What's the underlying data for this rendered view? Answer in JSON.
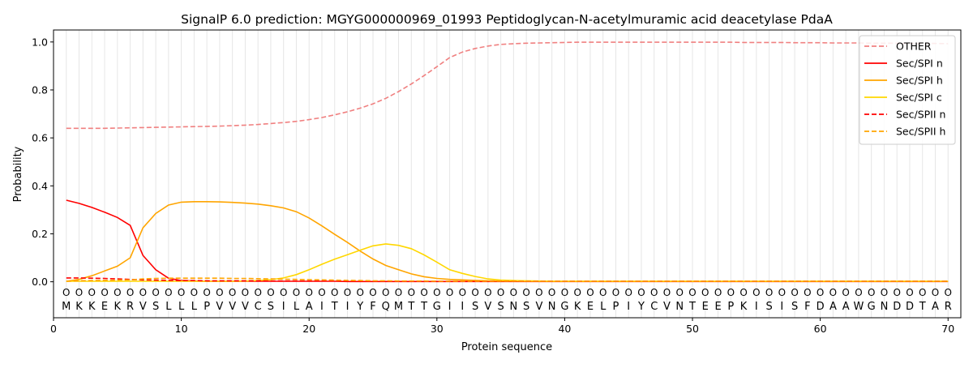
{
  "chart_data": {
    "type": "line",
    "title": "SignalP 6.0 prediction: MGYG000000969_01993 Peptidoglycan-N-acetylmuramic acid deacetylase PdaA",
    "xlabel": "Protein sequence",
    "ylabel": "Probability",
    "xlim": [
      0,
      71
    ],
    "ylim": [
      -0.15,
      1.05
    ],
    "grid": "vertical",
    "legend_position": "top-right",
    "x_ticks": [
      0,
      10,
      20,
      30,
      40,
      50,
      60,
      70
    ],
    "y_ticks": [
      "0.0",
      "0.2",
      "0.4",
      "0.6",
      "0.8",
      "1.0"
    ],
    "sequence": [
      "M",
      "K",
      "K",
      "E",
      "K",
      "R",
      "V",
      "S",
      "L",
      "L",
      "L",
      "P",
      "V",
      "V",
      "V",
      "C",
      "S",
      "I",
      "L",
      "A",
      "I",
      "T",
      "I",
      "Y",
      "F",
      "Q",
      "M",
      "T",
      "T",
      "G",
      "I",
      "I",
      "S",
      "V",
      "S",
      "N",
      "S",
      "V",
      "N",
      "G",
      "K",
      "E",
      "L",
      "P",
      "I",
      "Y",
      "C",
      "V",
      "N",
      "T",
      "E",
      "E",
      "P",
      "K",
      "I",
      "S",
      "I",
      "S",
      "F",
      "D",
      "A",
      "A",
      "W",
      "G",
      "N",
      "D",
      "D",
      "T",
      "A",
      "R"
    ],
    "position_marker": "O",
    "x": [
      1,
      2,
      3,
      4,
      5,
      6,
      7,
      8,
      9,
      10,
      11,
      12,
      13,
      14,
      15,
      16,
      17,
      18,
      19,
      20,
      21,
      22,
      23,
      24,
      25,
      26,
      27,
      28,
      29,
      30,
      31,
      32,
      33,
      34,
      35,
      36,
      37,
      38,
      39,
      40,
      41,
      42,
      43,
      44,
      45,
      46,
      47,
      48,
      49,
      50,
      51,
      52,
      53,
      54,
      55,
      56,
      57,
      58,
      59,
      60,
      61,
      62,
      63,
      64,
      65,
      66,
      67,
      68,
      69,
      70
    ],
    "series": [
      {
        "name": "OTHER",
        "color": "#f08080",
        "dash": true,
        "values": [
          0.64,
          0.64,
          0.64,
          0.64,
          0.641,
          0.642,
          0.643,
          0.644,
          0.645,
          0.646,
          0.647,
          0.648,
          0.649,
          0.651,
          0.653,
          0.656,
          0.66,
          0.664,
          0.669,
          0.676,
          0.685,
          0.696,
          0.709,
          0.724,
          0.742,
          0.765,
          0.793,
          0.825,
          0.86,
          0.897,
          0.935,
          0.958,
          0.973,
          0.983,
          0.99,
          0.993,
          0.995,
          0.996,
          0.997,
          0.998,
          0.999,
          0.999,
          0.999,
          0.999,
          0.999,
          0.999,
          0.999,
          0.999,
          0.999,
          0.999,
          0.999,
          0.999,
          0.999,
          0.998,
          0.998,
          0.998,
          0.998,
          0.997,
          0.997,
          0.997,
          0.996,
          0.996,
          0.996,
          0.995,
          0.995,
          0.995,
          0.994,
          0.994,
          0.994,
          0.993
        ]
      },
      {
        "name": "Sec/SPI n",
        "color": "#ff0000",
        "dash": false,
        "values": [
          0.34,
          0.327,
          0.31,
          0.29,
          0.268,
          0.235,
          0.11,
          0.05,
          0.015,
          0.005,
          0.003,
          0.002,
          0.002,
          0.002,
          0.002,
          0.002,
          0.002,
          0.002,
          0.002,
          0.002,
          0.002,
          0.002,
          0.001,
          0.001,
          0.001,
          0.001,
          0.001,
          0.001,
          0.001,
          0.001,
          0.001,
          0.001,
          0.001,
          0.001,
          0.001,
          0.001,
          0.001,
          0.001,
          0.001,
          0.001,
          0.001,
          0.001,
          0.001,
          0.001,
          0.001,
          0.001,
          0.001,
          0.001,
          0.001,
          0.001,
          0.001,
          0.001,
          0.001,
          0.001,
          0.001,
          0.001,
          0.001,
          0.001,
          0.001,
          0.001,
          0.001,
          0.001,
          0.001,
          0.001,
          0.001,
          0.001,
          0.001,
          0.001,
          0.001,
          0.001
        ]
      },
      {
        "name": "Sec/SPI h",
        "color": "#ffa500",
        "dash": false,
        "values": [
          0.002,
          0.01,
          0.025,
          0.045,
          0.065,
          0.1,
          0.225,
          0.285,
          0.32,
          0.332,
          0.334,
          0.334,
          0.333,
          0.331,
          0.328,
          0.324,
          0.317,
          0.308,
          0.292,
          0.266,
          0.233,
          0.198,
          0.164,
          0.128,
          0.095,
          0.068,
          0.05,
          0.033,
          0.021,
          0.014,
          0.01,
          0.008,
          0.006,
          0.004,
          0.003,
          0.003,
          0.002,
          0.002,
          0.002,
          0.002,
          0.002,
          0.002,
          0.002,
          0.002,
          0.002,
          0.002,
          0.002,
          0.002,
          0.002,
          0.002,
          0.002,
          0.002,
          0.002,
          0.002,
          0.002,
          0.002,
          0.002,
          0.002,
          0.002,
          0.002,
          0.002,
          0.002,
          0.002,
          0.002,
          0.002,
          0.002,
          0.002,
          0.002,
          0.002,
          0.002
        ]
      },
      {
        "name": "Sec/SPI c",
        "color": "#ffd700",
        "dash": false,
        "values": [
          0.002,
          0.002,
          0.002,
          0.002,
          0.002,
          0.002,
          0.002,
          0.002,
          0.002,
          0.002,
          0.002,
          0.002,
          0.002,
          0.002,
          0.003,
          0.005,
          0.009,
          0.016,
          0.03,
          0.05,
          0.073,
          0.094,
          0.113,
          0.132,
          0.15,
          0.158,
          0.152,
          0.138,
          0.112,
          0.082,
          0.05,
          0.035,
          0.022,
          0.012,
          0.007,
          0.005,
          0.004,
          0.003,
          0.002,
          0.002,
          0.002,
          0.002,
          0.002,
          0.002,
          0.002,
          0.002,
          0.002,
          0.002,
          0.002,
          0.002,
          0.002,
          0.002,
          0.002,
          0.002,
          0.002,
          0.002,
          0.002,
          0.002,
          0.002,
          0.002,
          0.002,
          0.002,
          0.002,
          0.002,
          0.002,
          0.002,
          0.002,
          0.002,
          0.002,
          0.002
        ]
      },
      {
        "name": "Sec/SPII n",
        "color": "#ff0000",
        "dash": true,
        "values": [
          0.016,
          0.016,
          0.015,
          0.014,
          0.012,
          0.01,
          0.008,
          0.007,
          0.006,
          0.005,
          0.005,
          0.004,
          0.004,
          0.004,
          0.004,
          0.004,
          0.003,
          0.003,
          0.003,
          0.003,
          0.003,
          0.003,
          0.002,
          0.002,
          0.002,
          0.002,
          0.002,
          0.002,
          0.002,
          0.002,
          0.002,
          0.002,
          0.002,
          0.002,
          0.002,
          0.002,
          0.002,
          0.002,
          0.002,
          0.002,
          0.002,
          0.002,
          0.002,
          0.002,
          0.002,
          0.002,
          0.002,
          0.002,
          0.002,
          0.002,
          0.002,
          0.002,
          0.002,
          0.002,
          0.002,
          0.002,
          0.002,
          0.002,
          0.002,
          0.002,
          0.002,
          0.002,
          0.002,
          0.002,
          0.002,
          0.002,
          0.002,
          0.002,
          0.002,
          0.002
        ]
      },
      {
        "name": "Sec/SPII h",
        "color": "#ffa500",
        "dash": true,
        "values": [
          0.002,
          0.004,
          0.005,
          0.006,
          0.007,
          0.008,
          0.012,
          0.014,
          0.015,
          0.015,
          0.015,
          0.015,
          0.015,
          0.014,
          0.014,
          0.013,
          0.012,
          0.011,
          0.01,
          0.009,
          0.008,
          0.007,
          0.006,
          0.005,
          0.004,
          0.004,
          0.003,
          0.003,
          0.003,
          0.002,
          0.002,
          0.002,
          0.002,
          0.002,
          0.002,
          0.002,
          0.002,
          0.002,
          0.002,
          0.002,
          0.002,
          0.002,
          0.002,
          0.002,
          0.002,
          0.002,
          0.002,
          0.002,
          0.002,
          0.002,
          0.002,
          0.002,
          0.002,
          0.002,
          0.002,
          0.002,
          0.002,
          0.002,
          0.002,
          0.002,
          0.002,
          0.002,
          0.002,
          0.002,
          0.002,
          0.002,
          0.002,
          0.002,
          0.002,
          0.002
        ]
      }
    ]
  }
}
